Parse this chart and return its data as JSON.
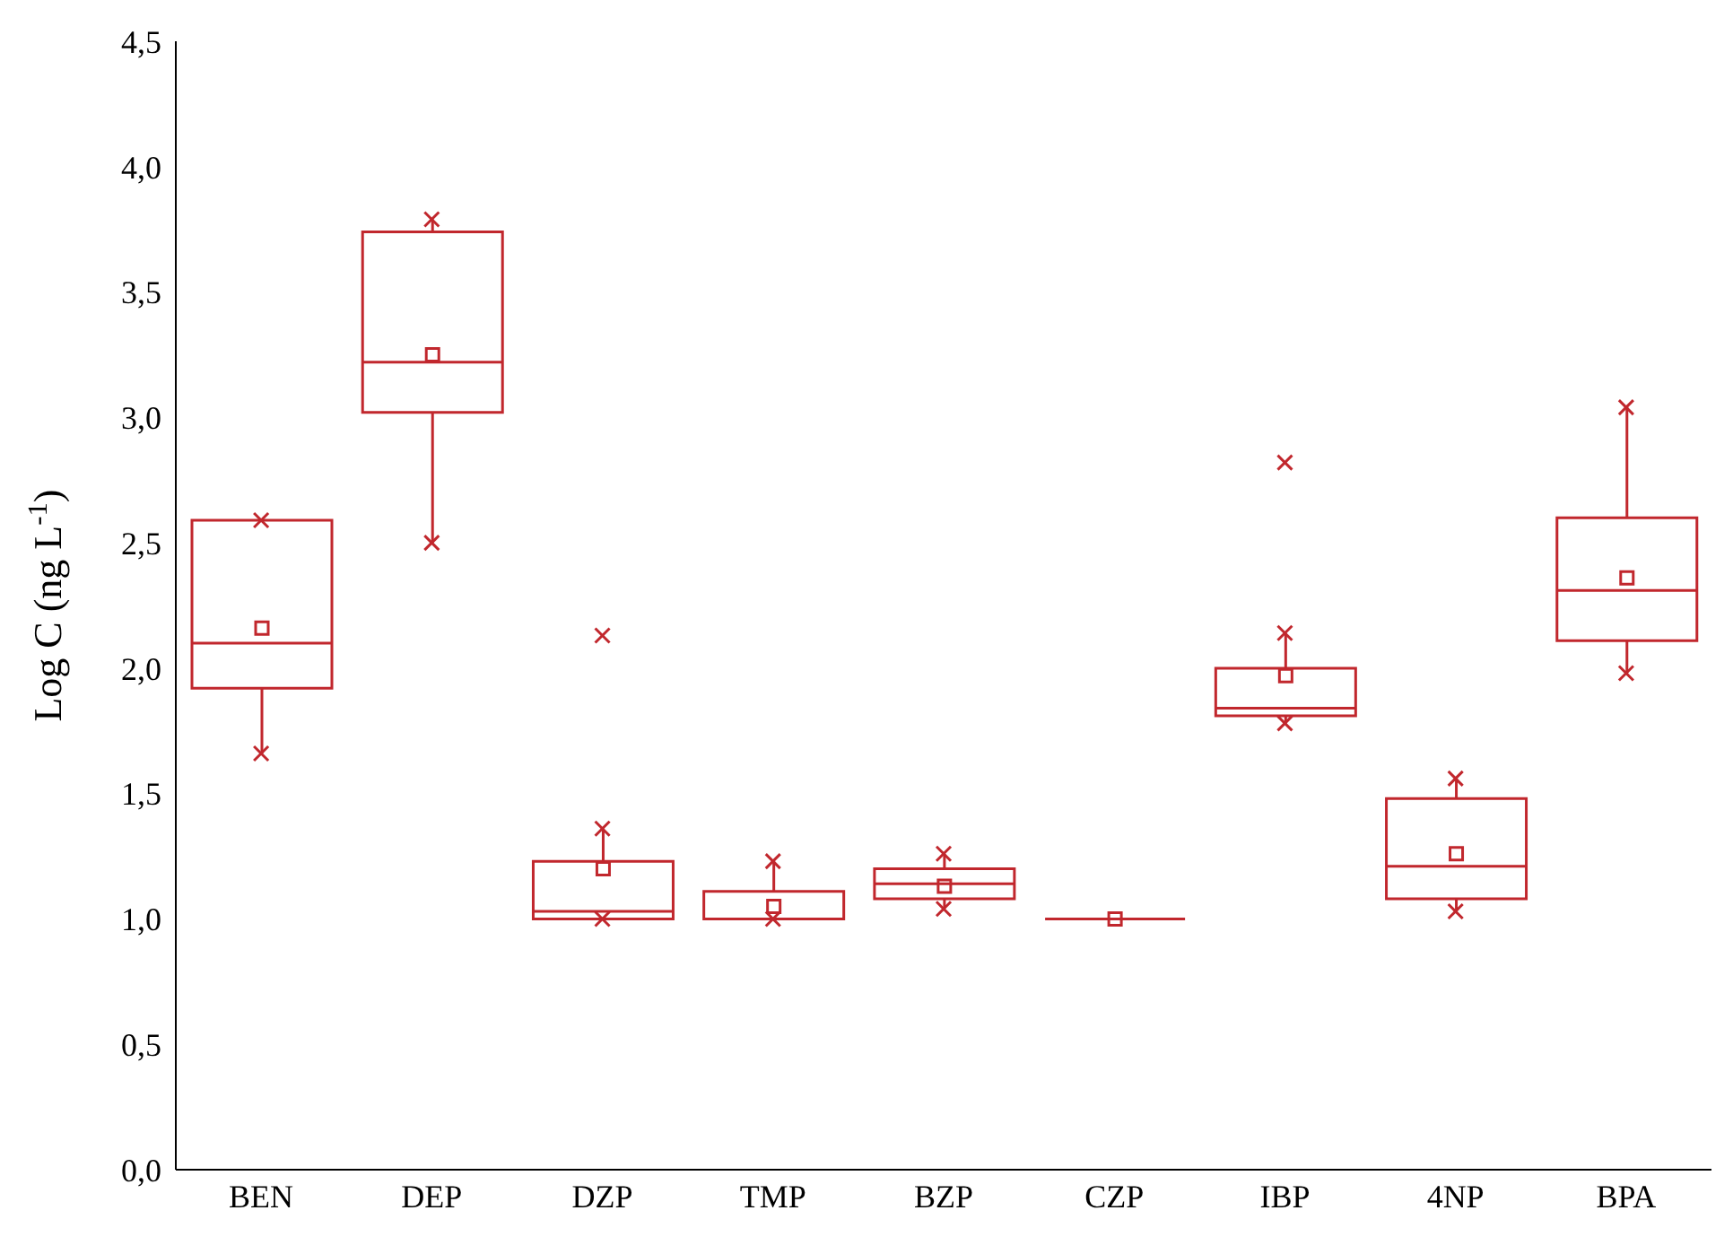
{
  "chart_data": {
    "type": "box",
    "ylabel": "Log C (ng L$^{-1}$)",
    "categories": [
      "BEN",
      "DEP",
      "DZP",
      "TMP",
      "BZP",
      "CZP",
      "IBP",
      "4NP",
      "BPA"
    ],
    "color": "#c1272d",
    "ylim": [
      0,
      4.5
    ],
    "yticks": [
      {
        "value": 0,
        "label": "0,0"
      },
      {
        "value": 0.5,
        "label": "0,5"
      },
      {
        "value": 1,
        "label": "1,0"
      },
      {
        "value": 1.5,
        "label": "1,5"
      },
      {
        "value": 2,
        "label": "2,0"
      },
      {
        "value": 2.5,
        "label": "2,5"
      },
      {
        "value": 3,
        "label": "3,0"
      },
      {
        "value": 3.5,
        "label": "3,5"
      },
      {
        "value": 4,
        "label": "4,0"
      },
      {
        "value": 4.5,
        "label": "4,5"
      }
    ],
    "boxes": [
      {
        "low": 1.66,
        "q1": 1.92,
        "median": 2.1,
        "q3": 2.59,
        "high": 2.59,
        "mean": 2.16
      },
      {
        "low": 2.5,
        "q1": 3.02,
        "median": 3.22,
        "q3": 3.74,
        "high": 3.79,
        "mean": 3.25
      },
      {
        "low": 1.0,
        "q1": 1.0,
        "median": 1.03,
        "q3": 1.23,
        "high": 1.36,
        "mean": 1.2
      },
      {
        "low": 1.0,
        "q1": 1.0,
        "median": 1.0,
        "q3": 1.11,
        "high": 1.23,
        "mean": 1.05
      },
      {
        "low": 1.04,
        "q1": 1.08,
        "median": 1.14,
        "q3": 1.2,
        "high": 1.26,
        "mean": 1.13
      },
      {
        "low": 1.0,
        "q1": 1.0,
        "median": 1.0,
        "q3": 1.0,
        "high": 1.0,
        "mean": 1.0
      },
      {
        "low": 1.78,
        "q1": 1.81,
        "median": 1.84,
        "q3": 2.0,
        "high": 2.14,
        "mean": 1.97
      },
      {
        "low": 1.03,
        "q1": 1.08,
        "median": 1.21,
        "q3": 1.48,
        "high": 1.56,
        "mean": 1.26
      },
      {
        "low": 1.98,
        "q1": 2.11,
        "median": 2.31,
        "q3": 2.6,
        "high": 3.04,
        "mean": 2.36
      }
    ],
    "series": [
      {
        "type": "scatter",
        "marker": "cross",
        "color": "#c1272d",
        "x": [
          "BEN",
          "BEN",
          "DEP",
          "DEP",
          "DZP",
          "DZP",
          "DZP",
          "TMP",
          "TMP",
          "BZP",
          "BZP",
          "IBP",
          "IBP",
          "IBP",
          "4NP",
          "4NP",
          "BPA",
          "BPA"
        ],
        "values": [
          1.66,
          2.59,
          2.5,
          3.79,
          1.0,
          1.36,
          2.13,
          1.0,
          1.23,
          1.04,
          1.26,
          1.78,
          2.14,
          2.82,
          1.03,
          1.56,
          1.98,
          3.04
        ]
      }
    ],
    "grid": false,
    "legend": false
  }
}
